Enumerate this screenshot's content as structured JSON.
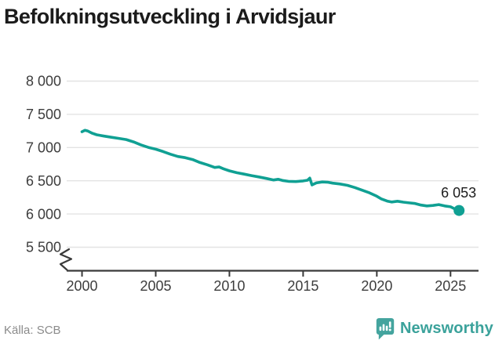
{
  "header": {
    "title": "Befolkningsutveckling i Arvidsjaur"
  },
  "footer": {
    "source": "Källa: SCB",
    "brand_name": "Newsworthy"
  },
  "colors": {
    "line": "#10a093",
    "dot": "#10a093",
    "grid": "#e3e3e3",
    "axis": "#3a3a3a",
    "tick_label": "#3d3d3d",
    "title": "#1b1b1b",
    "end_label": "#1c1c1c",
    "source_text": "#8b8b8b",
    "brand": "#44a49e"
  },
  "chart_data": {
    "type": "line",
    "title": "Befolkningsutveckling i Arvidsjaur",
    "xlabel": "",
    "ylabel": "",
    "grid": "horizontal",
    "legend_position": "none",
    "axis_break": true,
    "xlim": [
      1998.96,
      2026.9
    ],
    "ylim": [
      5500,
      8000
    ],
    "x_ticks": {
      "values": [
        2000,
        2005,
        2010,
        2015,
        2020,
        2025
      ],
      "labels": [
        "2000",
        "2005",
        "2010",
        "2015",
        "2020",
        "2025"
      ]
    },
    "y_ticks": {
      "values": [
        8000,
        7500,
        7000,
        6500,
        6000,
        5500
      ],
      "labels": [
        "8 000",
        "7 500",
        "7 000",
        "6 500",
        "6 000",
        "5 500"
      ]
    },
    "series": [
      {
        "name": "Befolkning",
        "x": [
          2000.0,
          2000.2,
          2000.4,
          2000.7,
          2001.0,
          2001.5,
          2002.0,
          2002.5,
          2003.0,
          2003.5,
          2004.0,
          2004.5,
          2005.0,
          2005.5,
          2006.0,
          2006.5,
          2007.0,
          2007.5,
          2008.0,
          2008.5,
          2009.0,
          2009.3,
          2009.6,
          2010.0,
          2010.5,
          2011.0,
          2011.5,
          2012.0,
          2012.5,
          2013.0,
          2013.3,
          2013.6,
          2014.0,
          2014.5,
          2015.0,
          2015.3,
          2015.45,
          2015.6,
          2015.9,
          2016.3,
          2016.7,
          2017.0,
          2017.5,
          2018.0,
          2018.5,
          2019.0,
          2019.5,
          2020.0,
          2020.3,
          2020.7,
          2021.0,
          2021.4,
          2021.8,
          2022.2,
          2022.6,
          2023.0,
          2023.4,
          2023.8,
          2024.2,
          2024.6,
          2025.0,
          2025.3,
          2025.58
        ],
        "values": [
          7238,
          7260,
          7248,
          7215,
          7192,
          7172,
          7155,
          7138,
          7120,
          7085,
          7040,
          7002,
          6975,
          6940,
          6900,
          6865,
          6848,
          6820,
          6775,
          6740,
          6700,
          6708,
          6680,
          6650,
          6622,
          6600,
          6578,
          6558,
          6535,
          6512,
          6522,
          6505,
          6492,
          6488,
          6498,
          6508,
          6540,
          6438,
          6468,
          6482,
          6478,
          6465,
          6452,
          6432,
          6398,
          6358,
          6318,
          6268,
          6228,
          6195,
          6180,
          6192,
          6178,
          6168,
          6158,
          6135,
          6122,
          6128,
          6142,
          6122,
          6108,
          6075,
          6053
        ]
      }
    ],
    "end_point": {
      "x": 2025.58,
      "value": 6053
    },
    "end_label": "6 053"
  }
}
